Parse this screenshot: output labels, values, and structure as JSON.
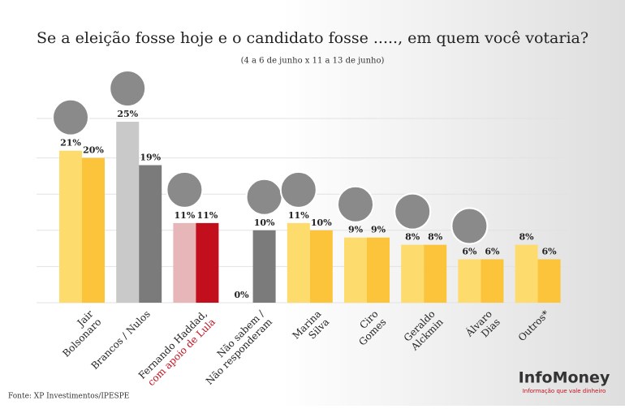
{
  "chart_data": {
    "type": "bar",
    "title": "Se a eleição fosse hoje e o candidato fosse ....., em quem você votaria?",
    "subtitle": "(4 a 6 de junho x 11 a 13 de junho)",
    "categories": [
      [
        "Jair",
        "Bolsonaro"
      ],
      [
        "Brancos / Nulos"
      ],
      [
        "Fernando Haddad,",
        "com apoio de Lula"
      ],
      [
        "Não sabem /",
        "Não responderam"
      ],
      [
        "Marina",
        "Silva"
      ],
      [
        "Ciro",
        "Gomes"
      ],
      [
        "Geraldo",
        "Alckmin"
      ],
      [
        "Álvaro",
        "Dias"
      ],
      [
        "Outros*"
      ]
    ],
    "series": [
      {
        "values": [
          21,
          25,
          11,
          0,
          11,
          9,
          8,
          6,
          8
        ],
        "value_labels": [
          "21%",
          "25%",
          "11%",
          "0%",
          "11%",
          "9%",
          "8%",
          "6%",
          "8%"
        ],
        "colors": [
          "#fddb6d",
          "#c9c9c9",
          "#e6b6b8",
          "#c9c9c9",
          "#fddb6d",
          "#fddb6d",
          "#fddb6d",
          "#fddb6d",
          "#fddb6d"
        ]
      },
      {
        "values": [
          20,
          19,
          11,
          10,
          10,
          9,
          8,
          6,
          6
        ],
        "value_labels": [
          "20%",
          "19%",
          "11%",
          "10%",
          "10%",
          "9%",
          "8%",
          "6%",
          "6%"
        ],
        "colors": [
          "#fcc43a",
          "#7b7b7b",
          "#c20e1d",
          "#7b7b7b",
          "#fcc43a",
          "#fcc43a",
          "#fcc43a",
          "#fcc43a",
          "#fcc43a"
        ]
      }
    ],
    "ylim": [
      0,
      25
    ],
    "yticks": [
      0,
      5,
      10,
      15,
      20,
      25
    ],
    "grid": true
  },
  "footer": {
    "source": "Fonte: XP Investimentos/IPESPE",
    "brand": "InfoMoney",
    "tagline": "Informação que vale dinheiro"
  }
}
